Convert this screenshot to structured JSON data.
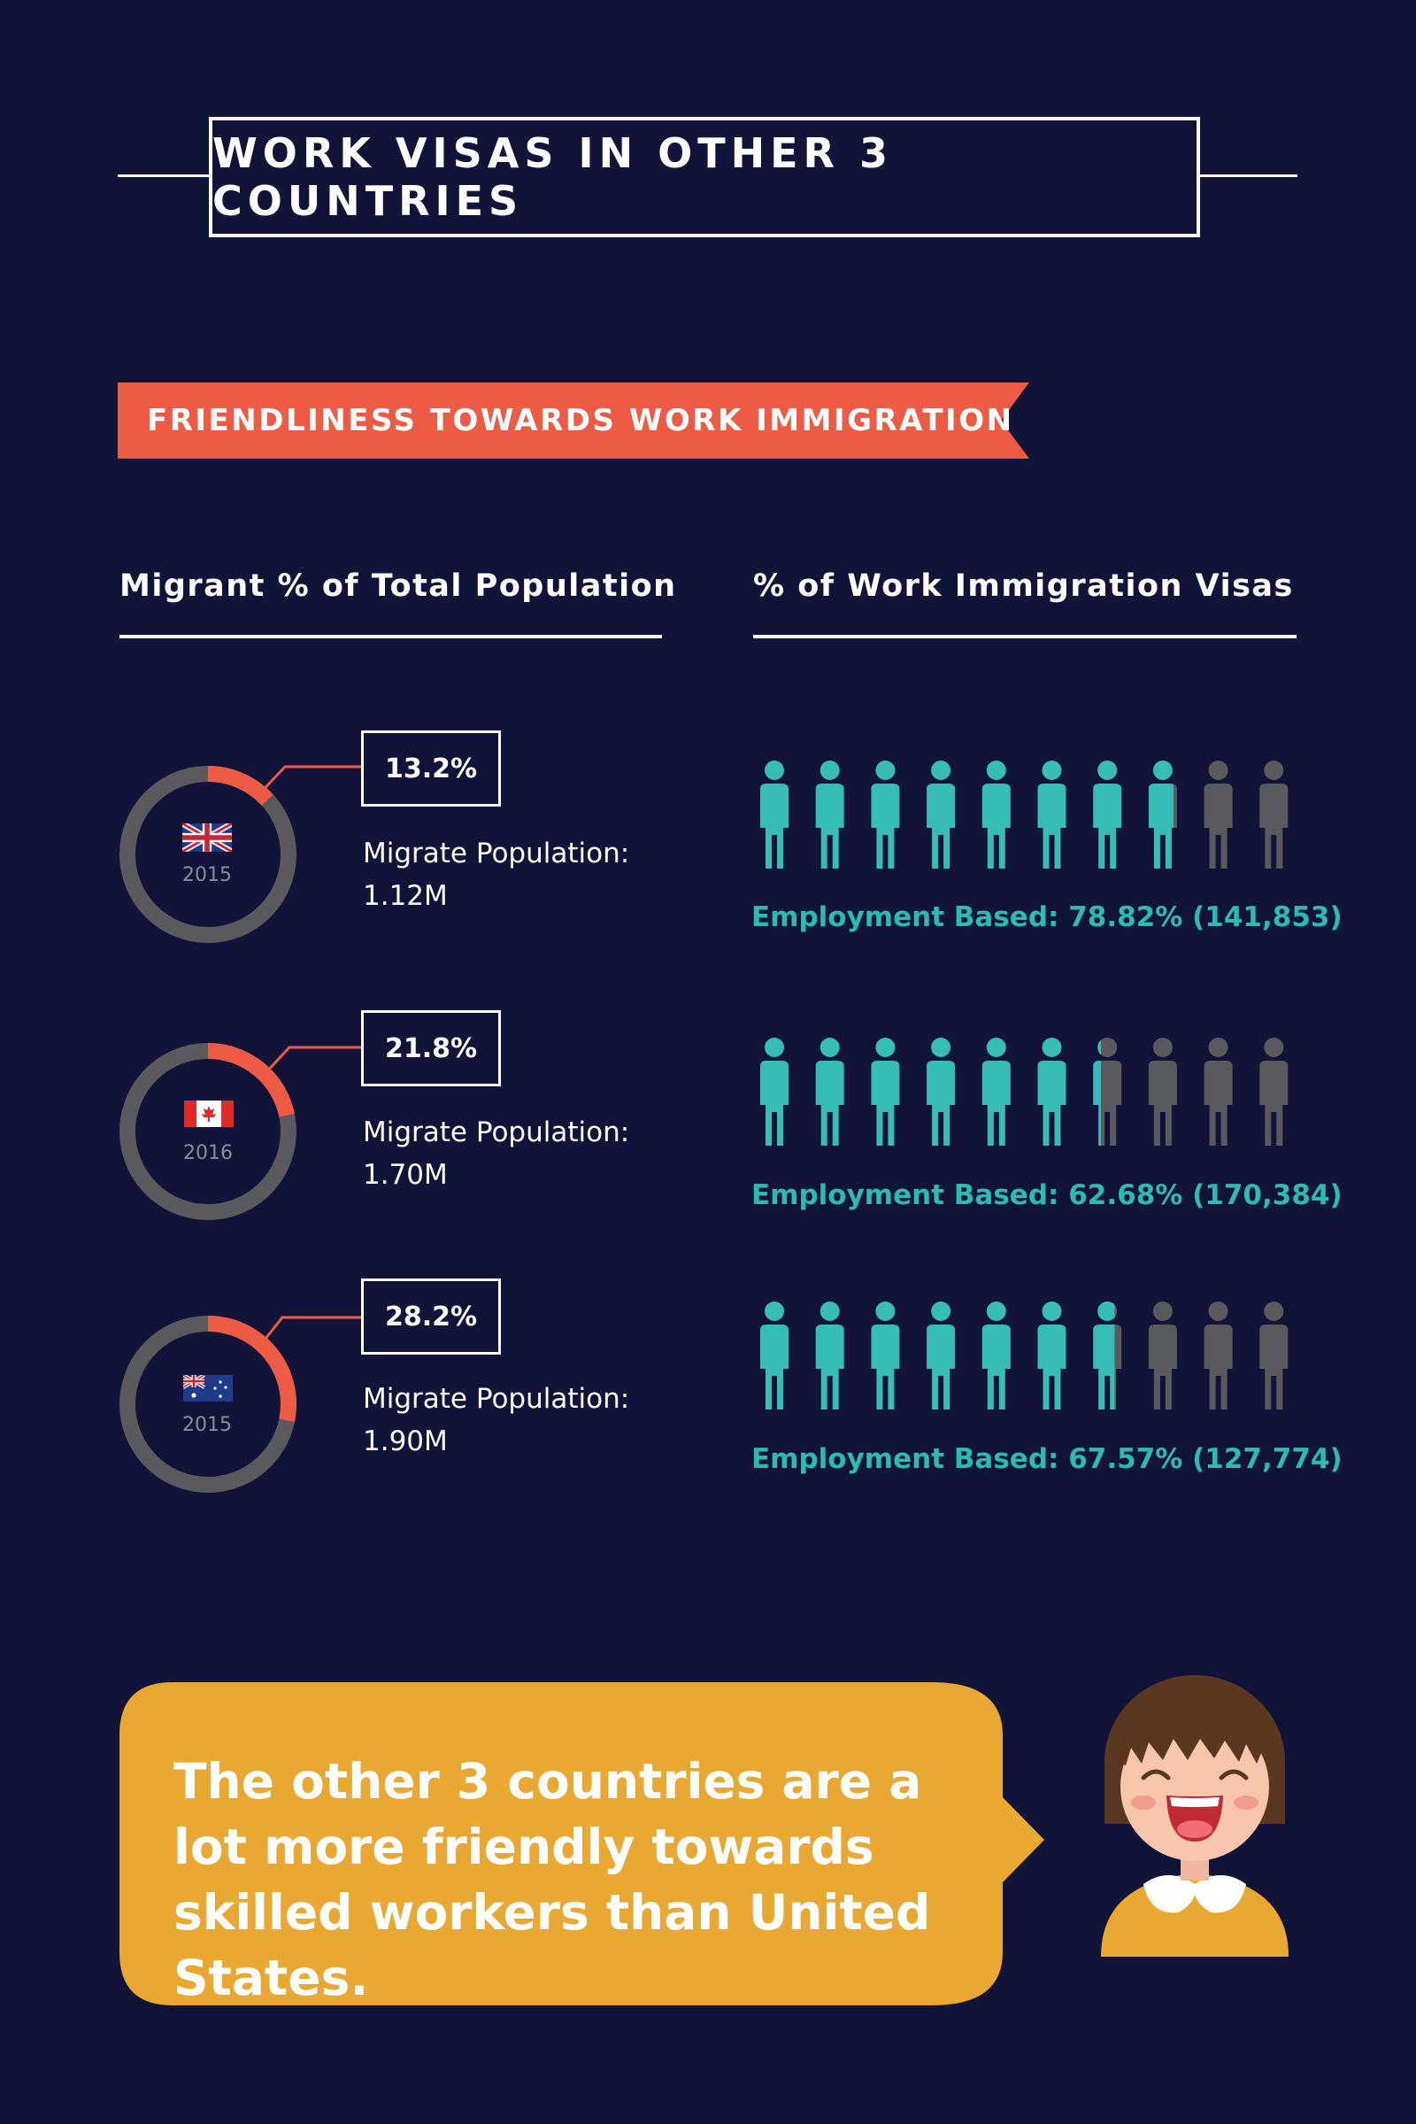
{
  "title": "WORK VISAS IN OTHER 3 COUNTRIES",
  "ribbon": "FRIENDLINESS TOWARDS WORK IMMIGRATION",
  "headers": {
    "left": "Migrant % of Total Population",
    "right": "% of Work Immigration Visas"
  },
  "colors": {
    "background": "#111339",
    "accent_red": "#ee5b44",
    "teal": "#36bdb6",
    "gray": "#5a5a5e",
    "bubble": "#e8a832"
  },
  "chart_data": {
    "type": "donut-and-pictogram",
    "rows": [
      {
        "country": "United Kingdom",
        "flag_icon": "uk-flag-icon",
        "year": "2015",
        "migrant_percent": 13.2,
        "migrant_percent_label": "13.2%",
        "migrate_population_label": "Migrate Population:",
        "migrate_population_value": "1.12M",
        "employment_based_percent": 78.82,
        "employment_label": "Employment Based: 78.82% (141,853)"
      },
      {
        "country": "Canada",
        "flag_icon": "canada-flag-icon",
        "year": "2016",
        "migrant_percent": 21.8,
        "migrant_percent_label": "21.8%",
        "migrate_population_label": "Migrate Population:",
        "migrate_population_value": "1.70M",
        "employment_based_percent": 62.68,
        "employment_label": "Employment Based: 62.68% (170,384)"
      },
      {
        "country": "Australia",
        "flag_icon": "australia-flag-icon",
        "year": "2015",
        "migrant_percent": 28.2,
        "migrant_percent_label": "28.2%",
        "migrate_population_label": "Migrate Population:",
        "migrate_population_value": "1.90M",
        "employment_based_percent": 67.57,
        "employment_label": "Employment Based: 67.57% (127,774)"
      }
    ]
  },
  "bubble_text": "The other 3 countries are a lot more friendly towards skilled workers than United States."
}
